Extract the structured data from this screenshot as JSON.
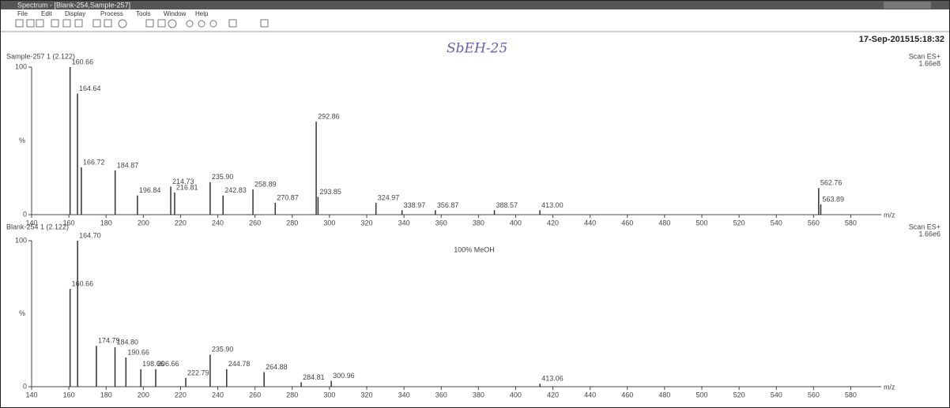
{
  "window": {
    "title": "Spectrum - [Blank-254,Sample-257]",
    "menu": [
      "File",
      "Edit",
      "Display",
      "Process",
      "Tools",
      "Window",
      "Help"
    ]
  },
  "header": {
    "timestamp": "17-Sep-201515:18:32",
    "handwritten": "SbEH-25"
  },
  "chart_data": [
    {
      "type": "stem",
      "title": "Sample-257 1 (2.122)",
      "scan": "Scan ES+",
      "scale": "1.66e8",
      "x_label": "m/z",
      "y_label": "%",
      "x": [
        160.66,
        164.64,
        166.72,
        184.87,
        196.84,
        214.73,
        216.81,
        235.9,
        242.83,
        258.89,
        270.87,
        292.86,
        293.85,
        324.97,
        338.97,
        356.87,
        388.57,
        413.0,
        562.76,
        563.89
      ],
      "x_labels": [
        "160.66",
        "164.64",
        "166.72",
        "184.87",
        "196.84",
        "214.73",
        "216.81",
        "235.90",
        "242.83",
        "258.89",
        "270.87",
        "292.86",
        "293.85",
        "324.97",
        "338.97",
        "356.87",
        "388.57",
        "413.00",
        "562.76",
        "563.89"
      ],
      "values": [
        100,
        82,
        32,
        30,
        13,
        19,
        15,
        22,
        13,
        17,
        8,
        63,
        12,
        8,
        3,
        3,
        3,
        3,
        18,
        7
      ],
      "color": "#333333",
      "xlim": [
        140,
        590
      ],
      "ylim": [
        0,
        100
      ],
      "xticks": [
        140,
        160,
        180,
        200,
        220,
        240,
        260,
        280,
        300,
        320,
        340,
        360,
        380,
        400,
        420,
        440,
        460,
        480,
        500,
        520,
        540,
        560,
        580
      ],
      "yticks": [
        0,
        100
      ]
    },
    {
      "type": "stem",
      "title": "Blank-254 1 (2.122)",
      "scan": "Scan ES+",
      "scale": "1.66e6",
      "x_label": "m/z",
      "y_label": "%",
      "annotation": "100% MeOH",
      "x": [
        160.66,
        164.7,
        174.79,
        184.8,
        190.66,
        198.66,
        206.66,
        222.79,
        235.9,
        244.78,
        264.88,
        284.81,
        300.96,
        413.06
      ],
      "x_labels": [
        "160.66",
        "164.70",
        "174.79",
        "184.80",
        "190.66",
        "198.66",
        "206.66",
        "222.79",
        "235.90",
        "244.78",
        "264.88",
        "284.81",
        "300.96",
        "413.06"
      ],
      "values": [
        67,
        100,
        28,
        27,
        20,
        12,
        12,
        6,
        22,
        12,
        10,
        3,
        4,
        2
      ],
      "color": "#333333",
      "xlim": [
        140,
        590
      ],
      "ylim": [
        0,
        100
      ],
      "xticks": [
        140,
        160,
        180,
        200,
        220,
        240,
        260,
        280,
        300,
        320,
        340,
        360,
        380,
        400,
        420,
        440,
        460,
        480,
        500,
        520,
        540,
        560,
        580
      ],
      "yticks": [
        0,
        100
      ]
    }
  ]
}
